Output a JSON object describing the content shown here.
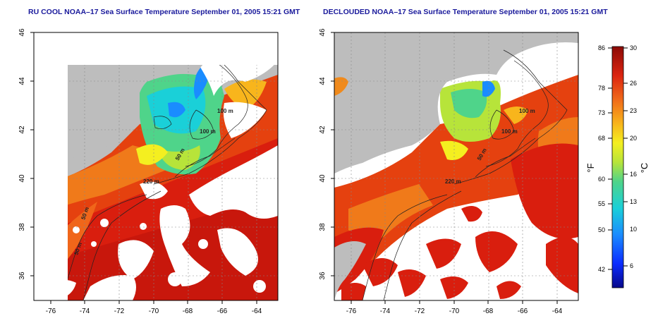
{
  "panels": [
    {
      "title": "RU COOL NOAA–17 Sea Surface Temperature September 01, 2005 15:21 GMT",
      "product": "raw",
      "xticks": [
        "-76",
        "-74",
        "-72",
        "-70",
        "-68",
        "-66",
        "-64"
      ],
      "yticks": [
        "46",
        "44",
        "42",
        "40",
        "38",
        "36"
      ],
      "contour_labels": [
        "100 m",
        "100 m",
        "50 m",
        "220 m",
        "50 m",
        "50 m"
      ]
    },
    {
      "title": "DECLOUDED NOAA–17 Sea Surface Temperature September 01, 2005 15:21 GMT",
      "product": "declouded",
      "xticks": [
        "-76",
        "-74",
        "-72",
        "-70",
        "-68",
        "-66",
        "-64"
      ],
      "yticks": [
        "46",
        "44",
        "42",
        "40",
        "38",
        "36"
      ],
      "contour_labels": [
        "100 m",
        "100 m",
        "50 m",
        "220 m"
      ]
    }
  ],
  "map_extent": {
    "lon": [
      -77,
      -63
    ],
    "lat": [
      35,
      46
    ]
  },
  "colorbar": {
    "celsius_ticks": [
      "30",
      "26",
      "23",
      "20",
      "16",
      "13",
      "10",
      "6"
    ],
    "fahrenheit_ticks": [
      "86",
      "78",
      "73",
      "68",
      "60",
      "55",
      "50",
      "42"
    ],
    "celsius_label": "°C",
    "fahrenheit_label": "°F",
    "range_c": [
      4,
      30
    ]
  },
  "colors": {
    "land": "#bdbdbd",
    "cloud": "#ffffff",
    "title": "#1a1a9c",
    "warm": "#d91e0e",
    "cold": "#1ad0d8"
  }
}
